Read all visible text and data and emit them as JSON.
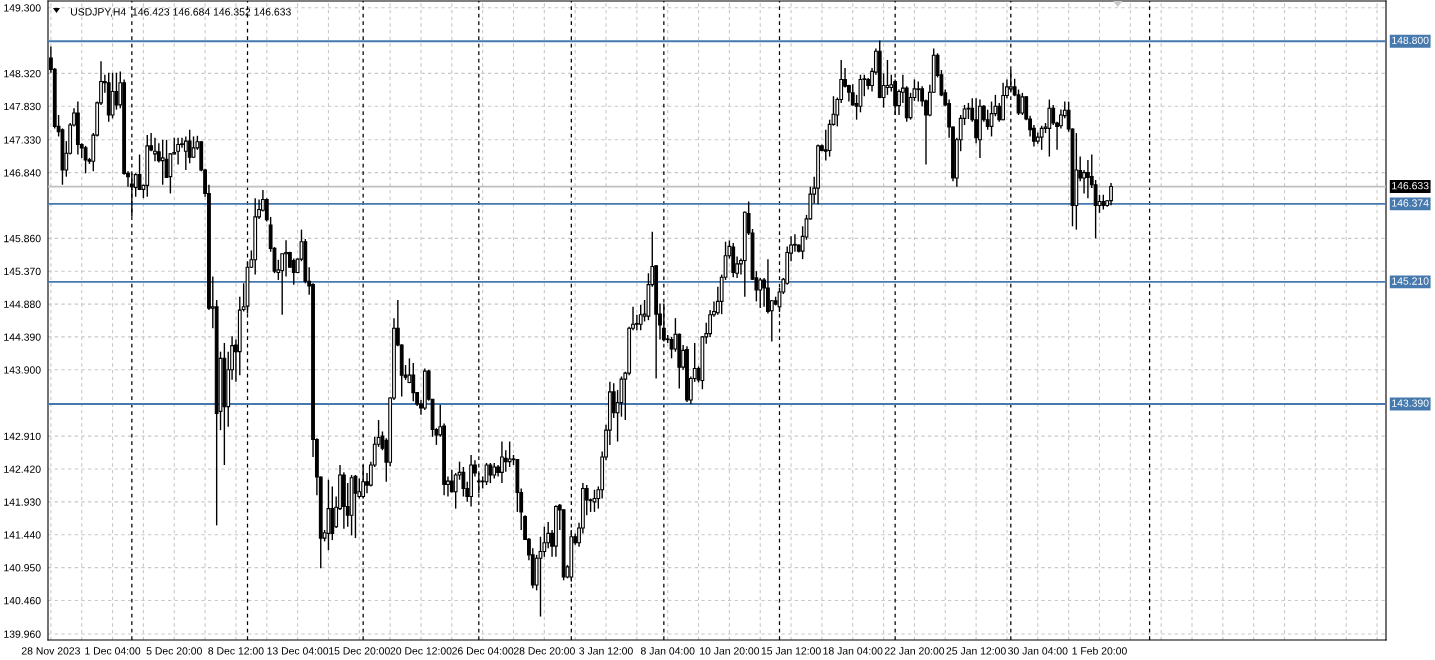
{
  "chart_data": {
    "type": "candlestick",
    "title": "USDJPY,H4  146.423 146.684 146.352 146.633",
    "color": "#000000",
    "categories": [
      "28 Nov 2023",
      null,
      null,
      null,
      null,
      null,
      null,
      null,
      null,
      null,
      null,
      null,
      null,
      null,
      null,
      null,
      "1 Dec 04:00",
      null,
      null,
      null,
      null,
      null,
      null,
      null,
      null,
      null,
      null,
      null,
      null,
      null,
      null,
      null,
      "5 Dec 20:00",
      null,
      null,
      null,
      null,
      null,
      null,
      null,
      null,
      null,
      null,
      null,
      null,
      null,
      null,
      null,
      "8 Dec 12:00",
      null,
      null,
      null,
      null,
      null,
      null,
      null,
      null,
      null,
      null,
      null,
      null,
      null,
      null,
      null,
      "13 Dec 04:00",
      null,
      null,
      null,
      null,
      null,
      null,
      null,
      null,
      null,
      null,
      null,
      null,
      null,
      null,
      null,
      "15 Dec 20:00",
      null,
      null,
      null,
      null,
      null,
      null,
      null,
      null,
      null,
      null,
      null,
      null,
      null,
      null,
      null,
      "20 Dec 12:00",
      null,
      null,
      null,
      null,
      null,
      null,
      null,
      null,
      null,
      null,
      null,
      null,
      null,
      null,
      null,
      "26 Dec 04:00",
      null,
      null,
      null,
      null,
      null,
      null,
      null,
      null,
      null,
      null,
      null,
      null,
      null,
      null,
      null,
      "28 Dec 20:00",
      null,
      null,
      null,
      null,
      null,
      null,
      null,
      null,
      null,
      null,
      null,
      null,
      null,
      null,
      null,
      "3 Jan 12:00",
      null,
      null,
      null,
      null,
      null,
      null,
      null,
      null,
      null,
      null,
      null,
      null,
      null,
      null,
      null,
      "8 Jan 04:00",
      null,
      null,
      null,
      null,
      null,
      null,
      null,
      null,
      null,
      null,
      null,
      null,
      null,
      null,
      null,
      "10 Jan 20:00",
      null,
      null,
      null,
      null,
      null,
      null,
      null,
      null,
      null,
      null,
      null,
      null,
      null,
      null,
      null,
      "15 Jan 12:00",
      null,
      null,
      null,
      null,
      null,
      null,
      null,
      null,
      null,
      null,
      null,
      null,
      null,
      null,
      null,
      "18 Jan 04:00",
      null,
      null,
      null,
      null,
      null,
      null,
      null,
      null,
      null,
      null,
      null,
      null,
      null,
      null,
      null,
      "22 Jan 20:00",
      null,
      null,
      null,
      null,
      null,
      null,
      null,
      null,
      null,
      null,
      null,
      null,
      null,
      null,
      null,
      "25 Jan 12:00",
      null,
      null,
      null,
      null,
      null,
      null,
      null,
      null,
      null,
      null,
      null,
      null,
      null,
      null,
      null,
      "30 Jan 04:00",
      null,
      null,
      null,
      null,
      null,
      null,
      null,
      null,
      null,
      null,
      null,
      null,
      null,
      null,
      null,
      "1 Feb 20:00",
      null,
      null,
      null
    ],
    "ohlc": [
      [
        148.55,
        148.72,
        148.33,
        148.38
      ],
      [
        148.38,
        148.4,
        147.5,
        147.53
      ],
      [
        147.53,
        147.7,
        147.38,
        147.45
      ],
      [
        147.48,
        147.5,
        146.66,
        146.88
      ],
      [
        146.88,
        147.31,
        146.78,
        147.13
      ],
      [
        147.13,
        147.58,
        147.11,
        147.55
      ],
      [
        147.55,
        147.8,
        147.53,
        147.73
      ],
      [
        147.73,
        147.9,
        147.11,
        147.26
      ],
      [
        147.26,
        147.28,
        147.06,
        147.21
      ],
      [
        147.21,
        147.24,
        146.83,
        147.03
      ],
      [
        147.03,
        147.06,
        146.97,
        147.01
      ],
      [
        147.01,
        147.43,
        146.86,
        147.4
      ],
      [
        147.4,
        147.9,
        147.38,
        147.88
      ],
      [
        147.88,
        148.5,
        147.85,
        148.2
      ],
      [
        148.2,
        148.3,
        148.03,
        148.18
      ],
      [
        148.18,
        148.33,
        147.6,
        147.7
      ],
      [
        147.7,
        148.33,
        147.65,
        148.05
      ],
      [
        148.05,
        148.33,
        147.78,
        147.85
      ],
      [
        147.85,
        148.35,
        147.8,
        148.18
      ],
      [
        148.18,
        148.23,
        146.81,
        146.83
      ],
      [
        146.83,
        146.86,
        146.63,
        146.78
      ],
      [
        146.67,
        146.83,
        146.19,
        146.63
      ],
      [
        146.62,
        146.83,
        146.48,
        146.81
      ],
      [
        146.81,
        147.11,
        146.58,
        146.59
      ],
      [
        146.59,
        146.66,
        146.46,
        146.65
      ],
      [
        146.65,
        147.4,
        146.48,
        147.24
      ],
      [
        147.24,
        147.43,
        147.16,
        147.18
      ],
      [
        147.12,
        147.36,
        147.01,
        147.16
      ],
      [
        147.15,
        147.28,
        146.99,
        147.02
      ],
      [
        147.02,
        147.33,
        146.66,
        147.06
      ],
      [
        147.04,
        147.33,
        146.76,
        146.77
      ],
      [
        146.78,
        147.13,
        146.53,
        147.12
      ],
      [
        147.12,
        147.36,
        147.11,
        147.14
      ],
      [
        147.16,
        147.36,
        146.96,
        147.26
      ],
      [
        147.26,
        147.36,
        147.21,
        147.27
      ],
      [
        147.16,
        147.38,
        146.88,
        147.31
      ],
      [
        147.31,
        147.48,
        146.98,
        147.07
      ],
      [
        147.07,
        147.38,
        147.06,
        147.21
      ],
      [
        147.21,
        147.39,
        147.18,
        147.3
      ],
      [
        147.3,
        147.31,
        146.86,
        146.88
      ],
      [
        146.88,
        146.9,
        146.48,
        146.53
      ],
      [
        146.53,
        146.66,
        144.79,
        144.82
      ],
      [
        144.82,
        145.29,
        144.52,
        144.84
      ],
      [
        144.84,
        144.94,
        141.58,
        143.25
      ],
      [
        143.28,
        144.17,
        143.0,
        144.07
      ],
      [
        144.07,
        144.3,
        142.48,
        143.35
      ],
      [
        143.35,
        144.17,
        143.05,
        143.9
      ],
      [
        143.9,
        144.4,
        143.75,
        144.26
      ],
      [
        144.27,
        144.35,
        143.72,
        144.17
      ],
      [
        144.17,
        144.99,
        143.82,
        144.79
      ],
      [
        144.8,
        145.19,
        144.77,
        144.84
      ],
      [
        144.85,
        145.51,
        144.74,
        145.43
      ],
      [
        145.43,
        145.68,
        145.42,
        145.54
      ],
      [
        145.54,
        146.46,
        145.32,
        146.18
      ],
      [
        146.18,
        146.44,
        146.15,
        146.29
      ],
      [
        146.28,
        146.58,
        146.26,
        146.44
      ],
      [
        146.44,
        146.46,
        146.11,
        146.14
      ],
      [
        146.06,
        146.18,
        145.66,
        145.71
      ],
      [
        145.71,
        145.73,
        145.34,
        145.37
      ],
      [
        145.35,
        145.54,
        145.24,
        145.39
      ],
      [
        145.38,
        145.63,
        144.72,
        145.63
      ],
      [
        145.63,
        145.83,
        145.29,
        145.65
      ],
      [
        145.65,
        145.66,
        145.42,
        145.43
      ],
      [
        145.53,
        145.56,
        145.17,
        145.35
      ],
      [
        145.35,
        145.56,
        145.34,
        145.55
      ],
      [
        145.55,
        145.99,
        145.52,
        145.81
      ],
      [
        145.81,
        145.85,
        145.19,
        145.22
      ],
      [
        145.22,
        145.43,
        145.02,
        145.15
      ],
      [
        145.17,
        145.19,
        142.6,
        142.86
      ],
      [
        142.86,
        142.88,
        142.03,
        142.3
      ],
      [
        142.3,
        142.31,
        140.94,
        141.39
      ],
      [
        141.39,
        141.51,
        141.34,
        141.47
      ],
      [
        141.46,
        142.26,
        141.21,
        141.83
      ],
      [
        141.83,
        142.16,
        141.36,
        141.46
      ],
      [
        141.56,
        142.01,
        141.54,
        141.85
      ],
      [
        141.83,
        142.48,
        141.81,
        142.33
      ],
      [
        142.33,
        142.37,
        141.53,
        141.86
      ],
      [
        141.86,
        142.21,
        141.56,
        141.73
      ],
      [
        141.73,
        142.33,
        141.43,
        142.29
      ],
      [
        142.31,
        142.33,
        141.39,
        142.06
      ],
      [
        142.01,
        142.28,
        141.98,
        142.08
      ],
      [
        142.01,
        142.48,
        141.98,
        142.23
      ],
      [
        142.23,
        142.36,
        142.06,
        142.18
      ],
      [
        142.18,
        142.53,
        142.16,
        142.48
      ],
      [
        142.48,
        142.9,
        142.45,
        142.79
      ],
      [
        142.79,
        143.15,
        142.75,
        142.89
      ],
      [
        142.91,
        142.98,
        142.7,
        142.73
      ],
      [
        142.85,
        142.88,
        142.23,
        142.52
      ],
      [
        142.52,
        143.49,
        142.46,
        143.48
      ],
      [
        143.48,
        144.67,
        143.45,
        144.52
      ],
      [
        144.52,
        144.94,
        144.25,
        144.27
      ],
      [
        144.27,
        144.28,
        143.5,
        143.82
      ],
      [
        143.82,
        143.97,
        143.75,
        143.79
      ],
      [
        143.71,
        144.07,
        143.7,
        143.82
      ],
      [
        143.82,
        144.0,
        143.43,
        143.56
      ],
      [
        143.56,
        143.57,
        143.36,
        143.39
      ],
      [
        143.39,
        143.45,
        143.23,
        143.33
      ],
      [
        143.33,
        143.92,
        143.3,
        143.88
      ],
      [
        143.88,
        143.9,
        143.44,
        143.46
      ],
      [
        143.46,
        143.46,
        142.9,
        143.01
      ],
      [
        143.01,
        143.03,
        142.78,
        142.93
      ],
      [
        142.93,
        143.38,
        142.9,
        143.05
      ],
      [
        143.06,
        143.1,
        142.03,
        142.19
      ],
      [
        142.19,
        142.31,
        142.01,
        142.24
      ],
      [
        142.24,
        142.41,
        142.07,
        142.08
      ],
      [
        142.08,
        142.36,
        141.83,
        142.33
      ],
      [
        142.33,
        142.53,
        142.26,
        142.37
      ],
      [
        142.37,
        142.45,
        142.01,
        142.13
      ],
      [
        142.13,
        142.23,
        141.93,
        142.01
      ],
      [
        142.01,
        142.63,
        141.86,
        142.48
      ],
      [
        142.48,
        142.55,
        142.31,
        142.36
      ],
      [
        142.23,
        142.36,
        142.06,
        142.24
      ],
      [
        142.24,
        142.31,
        142.13,
        142.23
      ],
      [
        142.23,
        142.51,
        142.18,
        142.48
      ],
      [
        142.48,
        142.51,
        142.21,
        142.33
      ],
      [
        142.33,
        142.51,
        142.28,
        142.45
      ],
      [
        142.45,
        142.48,
        142.31,
        142.37
      ],
      [
        142.37,
        142.83,
        142.21,
        142.6
      ],
      [
        142.58,
        142.7,
        142.38,
        142.53
      ],
      [
        142.53,
        142.83,
        142.45,
        142.57
      ],
      [
        142.57,
        142.63,
        142.48,
        142.56
      ],
      [
        142.56,
        142.57,
        141.78,
        142.07
      ],
      [
        142.07,
        142.13,
        141.51,
        141.78
      ],
      [
        141.71,
        141.73,
        141.36,
        141.37
      ],
      [
        141.37,
        141.39,
        141.06,
        141.14
      ],
      [
        141.14,
        141.24,
        140.64,
        140.69
      ],
      [
        140.69,
        141.14,
        140.61,
        141.09
      ],
      [
        141.09,
        141.41,
        140.22,
        141.19
      ],
      [
        141.19,
        141.56,
        141.11,
        141.32
      ],
      [
        141.32,
        141.63,
        141.24,
        141.46
      ],
      [
        141.46,
        141.51,
        141.11,
        141.27
      ],
      [
        141.27,
        141.88,
        141.11,
        141.86
      ],
      [
        141.88,
        141.9,
        141.51,
        141.81
      ],
      [
        141.81,
        141.82,
        140.76,
        140.81
      ],
      [
        140.81,
        140.99,
        140.79,
        140.96
      ],
      [
        140.81,
        141.51,
        140.74,
        141.41
      ],
      [
        141.41,
        141.46,
        141.29,
        141.32
      ],
      [
        141.32,
        141.62,
        141.26,
        141.54
      ],
      [
        141.54,
        142.21,
        141.46,
        142.13
      ],
      [
        142.13,
        142.18,
        141.73,
        141.96
      ],
      [
        141.96,
        141.98,
        141.78,
        141.95
      ],
      [
        141.93,
        142.11,
        141.78,
        141.98
      ],
      [
        141.98,
        142.16,
        141.83,
        142.11
      ],
      [
        142.11,
        142.68,
        141.98,
        142.6
      ],
      [
        142.6,
        143.08,
        142.55,
        143.0
      ],
      [
        143.0,
        143.72,
        142.78,
        143.57
      ],
      [
        143.57,
        143.7,
        143.18,
        143.26
      ],
      [
        143.26,
        143.6,
        142.83,
        143.41
      ],
      [
        143.41,
        143.8,
        143.2,
        143.76
      ],
      [
        143.76,
        143.87,
        143.15,
        143.85
      ],
      [
        143.85,
        144.54,
        143.82,
        144.52
      ],
      [
        144.52,
        144.84,
        144.49,
        144.58
      ],
      [
        144.58,
        144.72,
        144.49,
        144.59
      ],
      [
        144.58,
        144.87,
        144.49,
        144.72
      ],
      [
        144.7,
        144.94,
        144.62,
        144.73
      ],
      [
        144.7,
        145.34,
        144.64,
        145.17
      ],
      [
        145.17,
        145.96,
        145.14,
        145.44
      ],
      [
        145.45,
        145.46,
        143.77,
        144.73
      ],
      [
        144.73,
        144.89,
        144.35,
        144.57
      ],
      [
        144.52,
        144.89,
        144.32,
        144.35
      ],
      [
        144.35,
        144.42,
        144.3,
        144.36
      ],
      [
        144.35,
        144.39,
        144.07,
        144.21
      ],
      [
        144.21,
        144.67,
        144.17,
        144.43
      ],
      [
        144.43,
        144.44,
        143.62,
        143.94
      ],
      [
        143.94,
        144.27,
        143.9,
        144.19
      ],
      [
        144.2,
        144.25,
        143.42,
        143.45
      ],
      [
        143.45,
        143.8,
        143.39,
        143.77
      ],
      [
        143.77,
        144.3,
        143.72,
        143.92
      ],
      [
        143.92,
        143.95,
        143.71,
        143.75
      ],
      [
        143.74,
        144.4,
        143.61,
        144.39
      ],
      [
        144.39,
        144.6,
        144.29,
        144.44
      ],
      [
        144.44,
        144.79,
        144.39,
        144.72
      ],
      [
        144.72,
        144.92,
        144.69,
        144.77
      ],
      [
        144.75,
        145.14,
        144.72,
        144.92
      ],
      [
        144.92,
        145.32,
        144.73,
        145.28
      ],
      [
        145.28,
        145.81,
        145.24,
        145.6
      ],
      [
        145.6,
        145.83,
        145.56,
        145.74
      ],
      [
        145.73,
        145.79,
        145.28,
        145.35
      ],
      [
        145.34,
        145.59,
        145.27,
        145.48
      ],
      [
        145.48,
        145.56,
        145.32,
        145.53
      ],
      [
        145.53,
        146.26,
        144.99,
        146.25
      ],
      [
        146.23,
        146.41,
        145.91,
        145.94
      ],
      [
        145.94,
        146.0,
        145.24,
        145.25
      ],
      [
        145.27,
        145.37,
        144.92,
        145.09
      ],
      [
        145.09,
        145.27,
        144.82,
        145.24
      ],
      [
        145.24,
        145.27,
        144.84,
        145.12
      ],
      [
        145.12,
        145.55,
        144.74,
        144.77
      ],
      [
        144.78,
        144.94,
        144.32,
        144.93
      ],
      [
        144.93,
        144.99,
        144.86,
        144.88
      ],
      [
        144.84,
        145.12,
        144.76,
        145.06
      ],
      [
        145.06,
        145.27,
        145.03,
        145.25
      ],
      [
        145.19,
        145.74,
        145.17,
        145.65
      ],
      [
        145.64,
        145.89,
        145.52,
        145.76
      ],
      [
        145.76,
        145.92,
        145.66,
        145.77
      ],
      [
        145.76,
        145.77,
        145.65,
        145.67
      ],
      [
        145.67,
        146.04,
        145.55,
        145.89
      ],
      [
        145.88,
        146.21,
        145.84,
        146.15
      ],
      [
        146.15,
        146.63,
        146.14,
        146.52
      ],
      [
        146.52,
        146.78,
        146.38,
        146.61
      ],
      [
        146.61,
        147.26,
        146.37,
        147.24
      ],
      [
        147.24,
        147.26,
        147.16,
        147.17
      ],
      [
        147.18,
        147.48,
        147.02,
        147.16
      ],
      [
        147.17,
        147.63,
        147.08,
        147.56
      ],
      [
        147.56,
        147.98,
        147.54,
        147.71
      ],
      [
        147.7,
        147.96,
        147.53,
        147.93
      ],
      [
        147.93,
        148.52,
        147.88,
        148.23
      ],
      [
        148.23,
        148.4,
        148.11,
        148.13
      ],
      [
        148.14,
        148.15,
        147.9,
        148.04
      ],
      [
        148.03,
        148.16,
        147.84,
        147.85
      ],
      [
        147.87,
        148.0,
        147.63,
        147.83
      ],
      [
        147.83,
        148.3,
        147.74,
        148.23
      ],
      [
        148.23,
        148.3,
        147.98,
        148.24
      ],
      [
        148.23,
        148.25,
        148.08,
        148.14
      ],
      [
        148.14,
        148.4,
        148.05,
        148.35
      ],
      [
        148.34,
        148.69,
        148.3,
        148.65
      ],
      [
        148.65,
        148.81,
        147.95,
        147.96
      ],
      [
        147.96,
        148.32,
        147.81,
        148.14
      ],
      [
        148.11,
        148.52,
        148.0,
        148.14
      ],
      [
        148.11,
        148.3,
        148.05,
        148.15
      ],
      [
        148.2,
        148.23,
        147.7,
        147.84
      ],
      [
        147.84,
        148.08,
        147.7,
        148.05
      ],
      [
        148.04,
        148.3,
        147.88,
        148.1
      ],
      [
        148.1,
        148.13,
        147.6,
        147.66
      ],
      [
        147.66,
        148.03,
        147.63,
        147.96
      ],
      [
        147.96,
        148.23,
        147.91,
        148.09
      ],
      [
        148.08,
        148.2,
        147.9,
        148.09
      ],
      [
        148.09,
        148.13,
        147.83,
        147.91
      ],
      [
        147.91,
        147.93,
        146.96,
        147.7
      ],
      [
        147.7,
        148.15,
        147.68,
        148.04
      ],
      [
        148.04,
        148.69,
        148.03,
        148.59
      ],
      [
        148.59,
        148.62,
        148.26,
        148.29
      ],
      [
        148.3,
        148.37,
        147.98,
        148.0
      ],
      [
        148.03,
        148.08,
        147.83,
        147.85
      ],
      [
        147.87,
        147.93,
        147.36,
        147.52
      ],
      [
        147.52,
        147.53,
        146.71,
        146.76
      ],
      [
        146.76,
        147.36,
        146.63,
        147.33
      ],
      [
        147.33,
        147.7,
        147.16,
        147.65
      ],
      [
        147.65,
        147.85,
        147.55,
        147.79
      ],
      [
        147.79,
        147.88,
        147.64,
        147.8
      ],
      [
        147.8,
        147.95,
        147.6,
        147.63
      ],
      [
        147.63,
        147.95,
        147.28,
        147.36
      ],
      [
        147.33,
        147.93,
        147.06,
        147.83
      ],
      [
        147.83,
        147.85,
        147.6,
        147.63
      ],
      [
        147.63,
        147.78,
        147.48,
        147.53
      ],
      [
        147.53,
        147.9,
        147.38,
        147.72
      ],
      [
        147.72,
        148.0,
        147.68,
        147.83
      ],
      [
        147.83,
        147.88,
        147.6,
        147.63
      ],
      [
        147.63,
        148.18,
        147.62,
        147.99
      ],
      [
        147.99,
        148.23,
        147.95,
        148.12
      ],
      [
        148.09,
        148.37,
        148.05,
        148.12
      ],
      [
        148.12,
        148.24,
        147.98,
        148.0
      ],
      [
        148.0,
        148.08,
        147.7,
        147.73
      ],
      [
        147.73,
        148.03,
        147.7,
        147.97
      ],
      [
        147.97,
        147.98,
        147.62,
        147.64
      ],
      [
        147.64,
        147.69,
        147.38,
        147.48
      ],
      [
        147.5,
        147.55,
        147.23,
        147.31
      ],
      [
        147.31,
        147.44,
        147.27,
        147.37
      ],
      [
        147.37,
        147.54,
        147.18,
        147.5
      ],
      [
        147.5,
        147.58,
        147.43,
        147.52
      ],
      [
        147.5,
        147.93,
        147.08,
        147.8
      ],
      [
        147.8,
        147.85,
        147.55,
        147.58
      ],
      [
        147.58,
        147.6,
        147.18,
        147.53
      ],
      [
        147.54,
        147.78,
        147.5,
        147.7
      ],
      [
        147.69,
        147.9,
        147.65,
        147.77
      ],
      [
        147.77,
        147.9,
        147.45,
        147.49
      ],
      [
        147.49,
        147.5,
        146.04,
        146.35
      ],
      [
        146.35,
        147.43,
        145.99,
        146.88
      ],
      [
        146.87,
        147.08,
        146.71,
        146.76
      ],
      [
        146.76,
        146.88,
        146.53,
        146.84
      ],
      [
        146.84,
        147.03,
        146.46,
        146.77
      ],
      [
        146.78,
        147.11,
        146.61,
        146.66
      ],
      [
        146.66,
        146.73,
        145.86,
        146.35
      ],
      [
        146.35,
        146.51,
        146.24,
        146.41
      ],
      [
        146.41,
        146.51,
        146.29,
        146.35
      ],
      [
        146.35,
        146.43,
        146.33,
        146.42
      ],
      [
        146.423,
        146.684,
        146.352,
        146.633
      ]
    ],
    "ylim": [
      139.87,
      149.4
    ],
    "yticks": [
      {
        "value": 139.96,
        "label": "139.960"
      },
      {
        "value": 140.46,
        "label": "140.460"
      },
      {
        "value": 140.95,
        "label": "140.950"
      },
      {
        "value": 141.44,
        "label": "141.440"
      },
      {
        "value": 141.93,
        "label": "141.930"
      },
      {
        "value": 142.42,
        "label": "142.420"
      },
      {
        "value": 142.91,
        "label": "142.910"
      },
      {
        "value": 143.9,
        "label": "143.900"
      },
      {
        "value": 144.39,
        "label": "144.390"
      },
      {
        "value": 144.88,
        "label": "144.880"
      },
      {
        "value": 145.37,
        "label": "145.370"
      },
      {
        "value": 145.86,
        "label": "145.860"
      },
      {
        "value": 146.84,
        "label": "146.840"
      },
      {
        "value": 147.33,
        "label": "147.330"
      },
      {
        "value": 147.83,
        "label": "147.830"
      },
      {
        "value": 148.32,
        "label": "148.320"
      },
      {
        "value": 149.3,
        "label": "149.300"
      }
    ],
    "ref_lines": [
      {
        "axis": "y",
        "value": 148.8,
        "label": "148.800",
        "color": "#4679ad"
      },
      {
        "axis": "y",
        "value": 146.374,
        "label": "146.374",
        "color": "#4679ad"
      },
      {
        "axis": "y",
        "value": 145.21,
        "label": "145.210",
        "color": "#4679ad"
      },
      {
        "axis": "y",
        "value": 143.39,
        "label": "143.390",
        "color": "#4679ad"
      },
      {
        "axis": "y",
        "value": 146.633,
        "label": "146.633",
        "color": "#c0c0c0"
      }
    ],
    "grid": true
  }
}
